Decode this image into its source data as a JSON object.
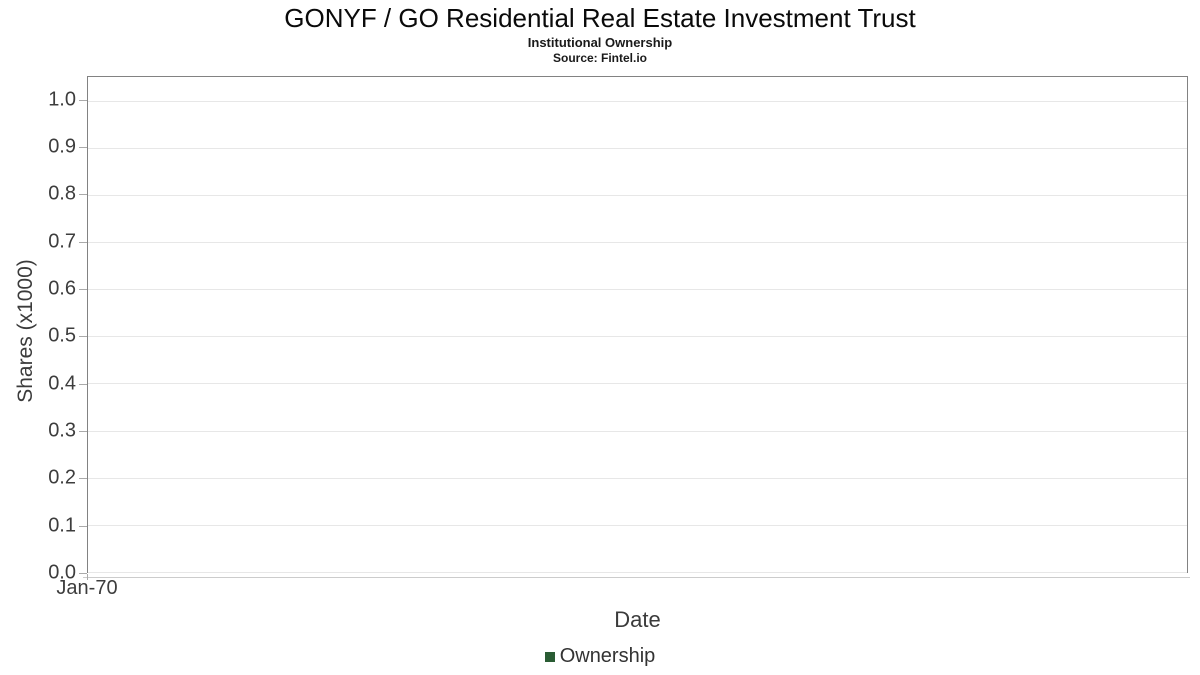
{
  "chart_data": {
    "type": "line",
    "title": "GONYF / GO Residential Real Estate Investment Trust",
    "subtitle": "Institutional Ownership",
    "source": "Source: Fintel.io",
    "xlabel": "Date",
    "ylabel": "Shares (x1000)",
    "x_tick_labels": [
      "Jan-70"
    ],
    "y_tick_labels": [
      "0.0",
      "0.1",
      "0.2",
      "0.3",
      "0.4",
      "0.5",
      "0.6",
      "0.7",
      "0.8",
      "0.9",
      "1.0"
    ],
    "ylim": [
      0,
      1.05
    ],
    "grid": "horizontal",
    "gridline_color": "#e7e7e7",
    "plot_border_color": "#828282",
    "tick_color": "#aaaaaa",
    "tick_label_color": "#3d3d3d",
    "legend": {
      "position": "bottom-center",
      "entries": [
        {
          "label": "Ownership",
          "marker_color": "#2a5c34"
        }
      ]
    },
    "series": [
      {
        "name": "Ownership",
        "x": [],
        "y": []
      }
    ]
  }
}
